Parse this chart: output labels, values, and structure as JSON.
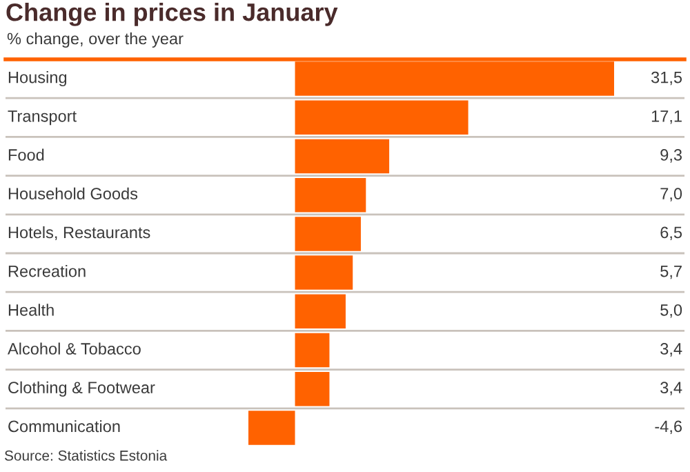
{
  "chart_data": {
    "type": "bar",
    "orientation": "horizontal",
    "title": "Change in prices in January",
    "subtitle": "% change, over the year",
    "categories": [
      "Housing",
      "Transport",
      "Food",
      "Household Goods",
      "Hotels, Restaurants",
      "Recreation",
      "Health",
      "Alcohol & Tobacco",
      "Clothing & Footwear",
      "Communication"
    ],
    "values": [
      31.5,
      17.1,
      9.3,
      7.0,
      6.5,
      5.7,
      5.0,
      3.4,
      3.4,
      -4.6
    ],
    "value_labels": [
      "31,5",
      "17,1",
      "9,3",
      "7,0",
      "6,5",
      "5,7",
      "5,0",
      "3,4",
      "3,4",
      "-4,6"
    ],
    "color": "#ff6200",
    "grid": "y",
    "tick_labels": "y",
    "annotations": [
      "Source: Statistics Estonia"
    ]
  }
}
